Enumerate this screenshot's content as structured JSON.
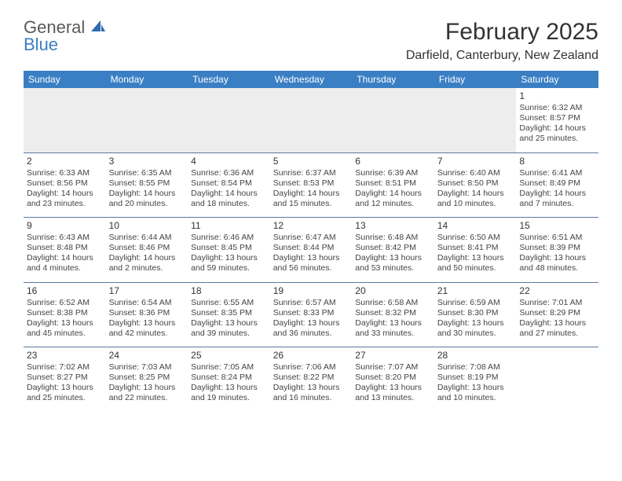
{
  "logo": {
    "line1": "General",
    "line2": "Blue"
  },
  "title": "February 2025",
  "location": "Darfield, Canterbury, New Zealand",
  "colors": {
    "header_bg": "#3a7fc4",
    "header_text": "#ffffff",
    "border": "#5b7a99",
    "empty_bg": "#ededed",
    "text": "#444444",
    "logo_gray": "#5a5a5a",
    "logo_blue": "#3a7fc4"
  },
  "weekdays": [
    "Sunday",
    "Monday",
    "Tuesday",
    "Wednesday",
    "Thursday",
    "Friday",
    "Saturday"
  ],
  "layout": {
    "columns": 7,
    "rows": 5,
    "first_day_column": 6
  },
  "days": [
    {
      "n": "1",
      "sunrise": "Sunrise: 6:32 AM",
      "sunset": "Sunset: 8:57 PM",
      "daylight": "Daylight: 14 hours and 25 minutes."
    },
    {
      "n": "2",
      "sunrise": "Sunrise: 6:33 AM",
      "sunset": "Sunset: 8:56 PM",
      "daylight": "Daylight: 14 hours and 23 minutes."
    },
    {
      "n": "3",
      "sunrise": "Sunrise: 6:35 AM",
      "sunset": "Sunset: 8:55 PM",
      "daylight": "Daylight: 14 hours and 20 minutes."
    },
    {
      "n": "4",
      "sunrise": "Sunrise: 6:36 AM",
      "sunset": "Sunset: 8:54 PM",
      "daylight": "Daylight: 14 hours and 18 minutes."
    },
    {
      "n": "5",
      "sunrise": "Sunrise: 6:37 AM",
      "sunset": "Sunset: 8:53 PM",
      "daylight": "Daylight: 14 hours and 15 minutes."
    },
    {
      "n": "6",
      "sunrise": "Sunrise: 6:39 AM",
      "sunset": "Sunset: 8:51 PM",
      "daylight": "Daylight: 14 hours and 12 minutes."
    },
    {
      "n": "7",
      "sunrise": "Sunrise: 6:40 AM",
      "sunset": "Sunset: 8:50 PM",
      "daylight": "Daylight: 14 hours and 10 minutes."
    },
    {
      "n": "8",
      "sunrise": "Sunrise: 6:41 AM",
      "sunset": "Sunset: 8:49 PM",
      "daylight": "Daylight: 14 hours and 7 minutes."
    },
    {
      "n": "9",
      "sunrise": "Sunrise: 6:43 AM",
      "sunset": "Sunset: 8:48 PM",
      "daylight": "Daylight: 14 hours and 4 minutes."
    },
    {
      "n": "10",
      "sunrise": "Sunrise: 6:44 AM",
      "sunset": "Sunset: 8:46 PM",
      "daylight": "Daylight: 14 hours and 2 minutes."
    },
    {
      "n": "11",
      "sunrise": "Sunrise: 6:46 AM",
      "sunset": "Sunset: 8:45 PM",
      "daylight": "Daylight: 13 hours and 59 minutes."
    },
    {
      "n": "12",
      "sunrise": "Sunrise: 6:47 AM",
      "sunset": "Sunset: 8:44 PM",
      "daylight": "Daylight: 13 hours and 56 minutes."
    },
    {
      "n": "13",
      "sunrise": "Sunrise: 6:48 AM",
      "sunset": "Sunset: 8:42 PM",
      "daylight": "Daylight: 13 hours and 53 minutes."
    },
    {
      "n": "14",
      "sunrise": "Sunrise: 6:50 AM",
      "sunset": "Sunset: 8:41 PM",
      "daylight": "Daylight: 13 hours and 50 minutes."
    },
    {
      "n": "15",
      "sunrise": "Sunrise: 6:51 AM",
      "sunset": "Sunset: 8:39 PM",
      "daylight": "Daylight: 13 hours and 48 minutes."
    },
    {
      "n": "16",
      "sunrise": "Sunrise: 6:52 AM",
      "sunset": "Sunset: 8:38 PM",
      "daylight": "Daylight: 13 hours and 45 minutes."
    },
    {
      "n": "17",
      "sunrise": "Sunrise: 6:54 AM",
      "sunset": "Sunset: 8:36 PM",
      "daylight": "Daylight: 13 hours and 42 minutes."
    },
    {
      "n": "18",
      "sunrise": "Sunrise: 6:55 AM",
      "sunset": "Sunset: 8:35 PM",
      "daylight": "Daylight: 13 hours and 39 minutes."
    },
    {
      "n": "19",
      "sunrise": "Sunrise: 6:57 AM",
      "sunset": "Sunset: 8:33 PM",
      "daylight": "Daylight: 13 hours and 36 minutes."
    },
    {
      "n": "20",
      "sunrise": "Sunrise: 6:58 AM",
      "sunset": "Sunset: 8:32 PM",
      "daylight": "Daylight: 13 hours and 33 minutes."
    },
    {
      "n": "21",
      "sunrise": "Sunrise: 6:59 AM",
      "sunset": "Sunset: 8:30 PM",
      "daylight": "Daylight: 13 hours and 30 minutes."
    },
    {
      "n": "22",
      "sunrise": "Sunrise: 7:01 AM",
      "sunset": "Sunset: 8:29 PM",
      "daylight": "Daylight: 13 hours and 27 minutes."
    },
    {
      "n": "23",
      "sunrise": "Sunrise: 7:02 AM",
      "sunset": "Sunset: 8:27 PM",
      "daylight": "Daylight: 13 hours and 25 minutes."
    },
    {
      "n": "24",
      "sunrise": "Sunrise: 7:03 AM",
      "sunset": "Sunset: 8:25 PM",
      "daylight": "Daylight: 13 hours and 22 minutes."
    },
    {
      "n": "25",
      "sunrise": "Sunrise: 7:05 AM",
      "sunset": "Sunset: 8:24 PM",
      "daylight": "Daylight: 13 hours and 19 minutes."
    },
    {
      "n": "26",
      "sunrise": "Sunrise: 7:06 AM",
      "sunset": "Sunset: 8:22 PM",
      "daylight": "Daylight: 13 hours and 16 minutes."
    },
    {
      "n": "27",
      "sunrise": "Sunrise: 7:07 AM",
      "sunset": "Sunset: 8:20 PM",
      "daylight": "Daylight: 13 hours and 13 minutes."
    },
    {
      "n": "28",
      "sunrise": "Sunrise: 7:08 AM",
      "sunset": "Sunset: 8:19 PM",
      "daylight": "Daylight: 13 hours and 10 minutes."
    }
  ]
}
